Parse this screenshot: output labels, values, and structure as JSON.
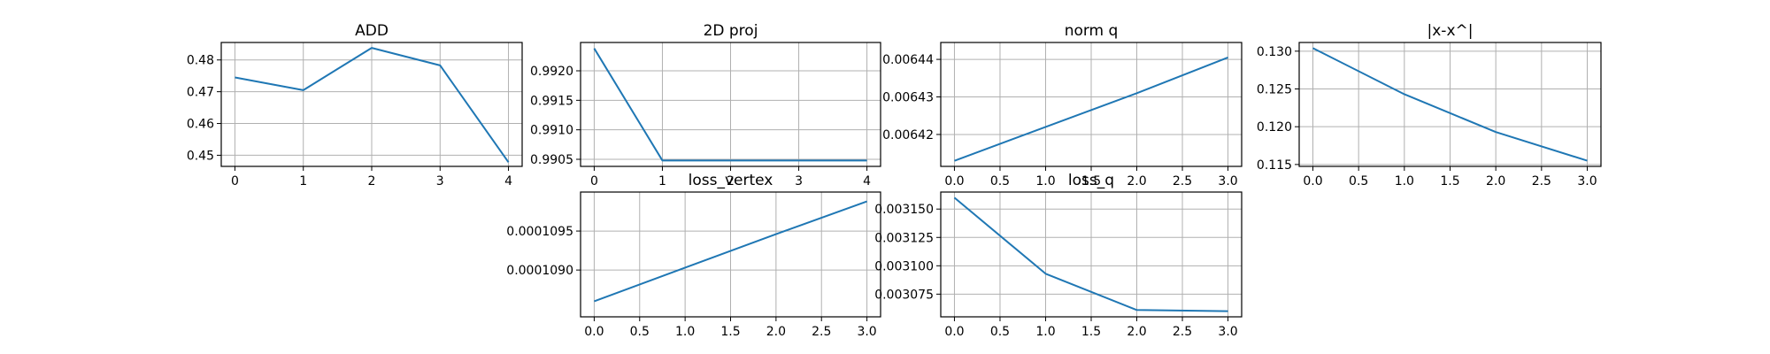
{
  "chart_data": [
    {
      "type": "line",
      "title": "ADD",
      "x": [
        0,
        1,
        2,
        3,
        4
      ],
      "series": [
        {
          "values": [
            0.4745,
            0.4705,
            0.4838,
            0.4783,
            0.4478
          ]
        }
      ],
      "xticks": [
        "0",
        "1",
        "2",
        "3",
        "4"
      ],
      "yticks": [
        "0.45",
        "0.46",
        "0.47",
        "0.48"
      ],
      "xlim": [
        -0.2,
        4.2
      ],
      "ylim": [
        0.4465,
        0.4855
      ],
      "grid": true
    },
    {
      "type": "line",
      "title": "2D proj",
      "x": [
        0,
        1,
        2,
        3,
        4
      ],
      "series": [
        {
          "values": [
            0.99238,
            0.99048,
            0.99048,
            0.99048,
            0.99048
          ]
        }
      ],
      "xticks": [
        "0",
        "1",
        "2",
        "3",
        "4"
      ],
      "yticks": [
        "0.9905",
        "0.9910",
        "0.9915",
        "0.9920"
      ],
      "xlim": [
        -0.2,
        4.2
      ],
      "ylim": [
        0.99038,
        0.99248
      ],
      "grid": true
    },
    {
      "type": "line",
      "title": "norm q",
      "x": [
        0,
        1,
        2,
        3
      ],
      "series": [
        {
          "values": [
            0.006413,
            0.006422,
            0.006431,
            0.0064405
          ]
        }
      ],
      "xticks": [
        "0.0",
        "0.5",
        "1.0",
        "1.5",
        "2.0",
        "2.5",
        "3.0"
      ],
      "yticks": [
        "0.00642",
        "0.00643",
        "0.00644"
      ],
      "xlim": [
        -0.15,
        3.15
      ],
      "ylim": [
        0.0064115,
        0.0064445
      ],
      "grid": true
    },
    {
      "type": "line",
      "title": "|x-x^|",
      "x": [
        0,
        1,
        2,
        3
      ],
      "series": [
        {
          "values": [
            0.1304,
            0.1243,
            0.1193,
            0.1155
          ]
        }
      ],
      "xticks": [
        "0.0",
        "0.5",
        "1.0",
        "1.5",
        "2.0",
        "2.5",
        "3.0"
      ],
      "yticks": [
        "0.115",
        "0.120",
        "0.125",
        "0.130"
      ],
      "xlim": [
        -0.15,
        3.15
      ],
      "ylim": [
        0.11475,
        0.13115
      ],
      "grid": true
    },
    {
      "type": "line",
      "title": "loss_vertex",
      "x": [
        0,
        1,
        2,
        3
      ],
      "series": [
        {
          "values": [
            0.0001086,
            0.00010903,
            0.00010946,
            0.00010988
          ]
        }
      ],
      "xticks": [
        "0.0",
        "0.5",
        "1.0",
        "1.5",
        "2.0",
        "2.5",
        "3.0"
      ],
      "yticks": [
        "0.0001090",
        "0.0001095"
      ],
      "xlim": [
        -0.15,
        3.15
      ],
      "ylim": [
        0.0001084,
        0.00011
      ],
      "grid": true
    },
    {
      "type": "line",
      "title": "loss_q",
      "x": [
        0,
        1,
        2,
        3
      ],
      "series": [
        {
          "values": [
            0.00316,
            0.003093,
            0.003061,
            0.00306
          ]
        }
      ],
      "xticks": [
        "0.0",
        "0.5",
        "1.0",
        "1.5",
        "2.0",
        "2.5",
        "3.0"
      ],
      "yticks": [
        "0.003075",
        "0.003100",
        "0.003125",
        "0.003150"
      ],
      "xlim": [
        -0.15,
        3.15
      ],
      "ylim": [
        0.003055,
        0.003165
      ],
      "grid": true
    }
  ],
  "colors": {
    "line": "#1f77b4",
    "grid": "#b0b0b0",
    "axes": "#000000"
  }
}
